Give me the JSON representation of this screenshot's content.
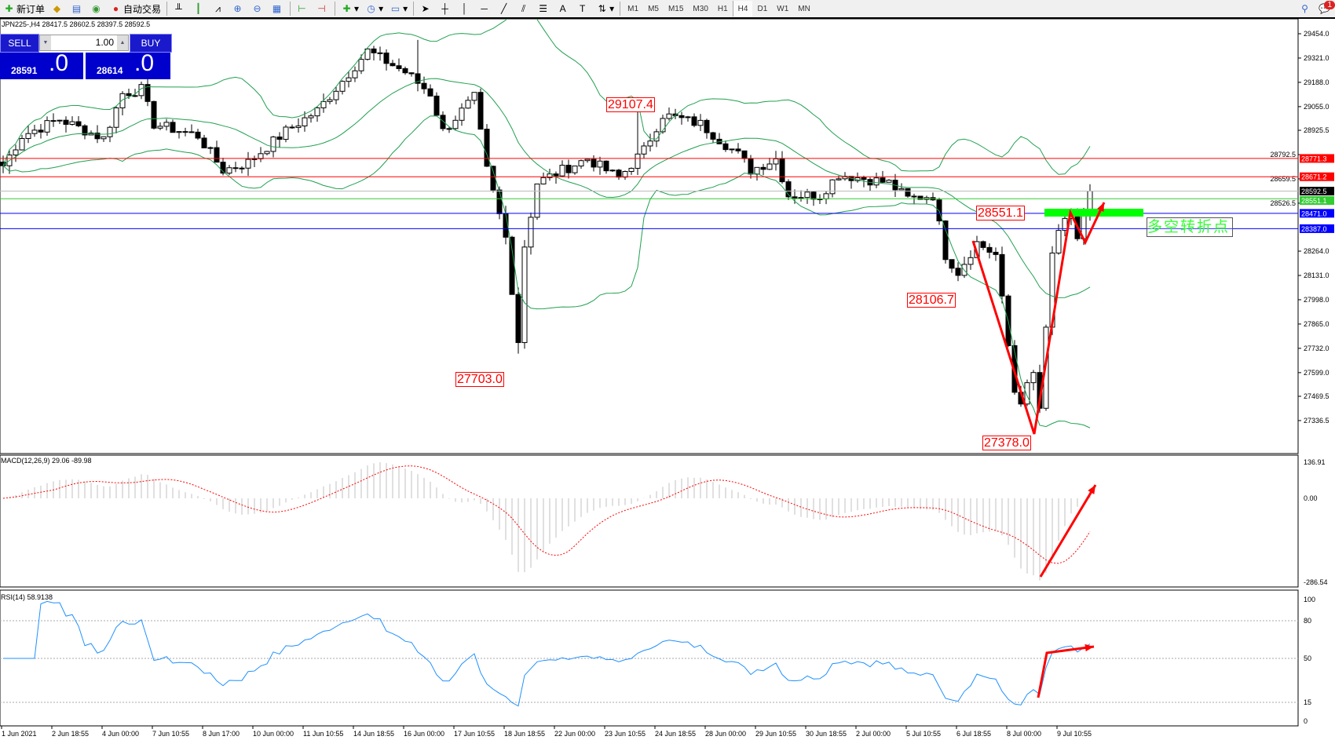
{
  "toolbar": {
    "new_order": "新订单",
    "auto_trading": "自动交易",
    "timeframes": [
      "M1",
      "M5",
      "M15",
      "M30",
      "H1",
      "H4",
      "D1",
      "W1",
      "MN"
    ],
    "active_timeframe": "H4",
    "notification_count": "1"
  },
  "chart": {
    "title": "JPN225-,H4  28417.5 28602.5 28397.5 28592.5",
    "trade_panel": {
      "sell": "SELL",
      "buy": "BUY",
      "lot": "1.00",
      "bid_main": "28591",
      "bid_frac": ".0",
      "ask_main": "28614",
      "ask_frac": ".0"
    },
    "price_axis": [
      "29454.0",
      "29321.0",
      "29188.0",
      "29055.0",
      "28925.5",
      "28792.5",
      "28659.5",
      "28526.5",
      "28264.0",
      "28131.0",
      "27998.0",
      "27865.0",
      "27732.0",
      "27599.0",
      "27469.5",
      "27336.5"
    ],
    "levels": [
      {
        "price": "28771.3",
        "color": "#ff0000"
      },
      {
        "price": "28671.2",
        "color": "#ff0000"
      },
      {
        "price": "28592.5",
        "color": "#000000"
      },
      {
        "price": "28551.1",
        "color": "#33cc33"
      },
      {
        "price": "28471.0",
        "color": "#0000ff"
      },
      {
        "price": "28387.0",
        "color": "#0000ff"
      }
    ],
    "annotations": [
      "29107.4",
      "27703.0",
      "28551.1",
      "28106.7",
      "27378.0"
    ],
    "turn_point_text": "多空转折点",
    "colors": {
      "bands": "#20a050",
      "arrow": "#ff0000",
      "zone": "#00ff00"
    }
  },
  "macd": {
    "label": "MACD(12,26,9) 29.06 -89.98",
    "axis": [
      "136.91",
      "0.00",
      "-286.54"
    ]
  },
  "rsi": {
    "label": "RSI(14) 58.9138",
    "axis": [
      "100",
      "80",
      "50",
      "15",
      "0"
    ]
  },
  "time_axis": [
    "1 Jun 2021",
    "2 Jun 18:55",
    "4 Jun 00:00",
    "7 Jun 10:55",
    "8 Jun 17:00",
    "10 Jun 00:00",
    "11 Jun 10:55",
    "14 Jun 18:55",
    "16 Jun 00:00",
    "17 Jun 10:55",
    "18 Jun 18:55",
    "22 Jun 00:00",
    "23 Jun 10:55",
    "24 Jun 18:55",
    "28 Jun 00:00",
    "29 Jun 10:55",
    "30 Jun 18:55",
    "2 Jul 00:00",
    "5 Jul 10:55",
    "6 Jul 18:55",
    "8 Jul 00:00",
    "9 Jul 10:55"
  ]
}
